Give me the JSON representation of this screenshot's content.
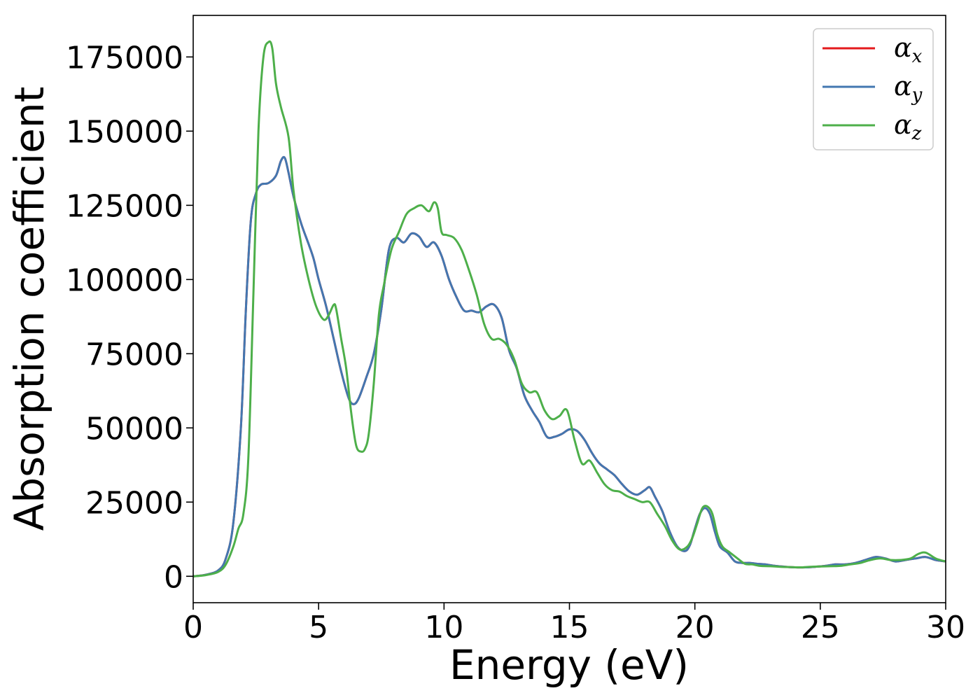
{
  "chart_data": {
    "type": "line",
    "xlabel": "Energy (eV)",
    "ylabel": "Absorption coefficient",
    "xlim": [
      0,
      30
    ],
    "ylim": [
      -8900,
      189000
    ],
    "x_ticks": [
      "0",
      "5",
      "10",
      "15",
      "20",
      "25",
      "30"
    ],
    "y_ticks": [
      "0",
      "25000",
      "50000",
      "75000",
      "100000",
      "125000",
      "150000",
      "175000"
    ],
    "grid": false,
    "legend_placement": "top-right",
    "series": [
      {
        "name": "α",
        "subscript": "x",
        "color": "#e41a1c",
        "x": [
          0,
          0.5,
          1.0,
          1.3,
          1.6,
          1.9,
          2.1,
          2.3,
          2.5,
          2.7,
          3.0,
          3.3,
          3.5,
          3.65,
          3.8,
          4.0,
          4.3,
          4.6,
          4.8,
          5.0,
          5.3,
          5.6,
          5.9,
          6.2,
          6.4,
          6.6,
          6.9,
          7.2,
          7.5,
          7.8,
          8.1,
          8.4,
          8.7,
          9.0,
          9.3,
          9.6,
          9.9,
          10.2,
          10.5,
          10.8,
          11.1,
          11.4,
          11.7,
          12.0,
          12.3,
          12.6,
          12.9,
          13.2,
          13.5,
          13.8,
          14.1,
          14.4,
          14.7,
          15.0,
          15.3,
          15.6,
          15.9,
          16.2,
          16.5,
          16.8,
          17.1,
          17.4,
          17.7,
          18.0,
          18.2,
          18.4,
          18.7,
          19.0,
          19.3,
          19.6,
          19.8,
          20.0,
          20.2,
          20.4,
          20.6,
          20.8,
          21.0,
          21.3,
          21.6,
          21.9,
          22.2,
          22.5,
          22.8,
          23.2,
          23.6,
          24.0,
          24.4,
          24.8,
          25.2,
          25.6,
          26.0,
          26.4,
          26.8,
          27.2,
          27.6,
          28.0,
          28.4,
          28.8,
          29.2,
          29.6,
          30.0
        ],
        "values": [
          0,
          500,
          2000,
          6000,
          18000,
          50000,
          90000,
          120000,
          129000,
          132000,
          132500,
          135000,
          140000,
          141000,
          136000,
          128000,
          119000,
          112000,
          107000,
          100000,
          91000,
          80000,
          69000,
          60000,
          58000,
          60000,
          67000,
          75000,
          90000,
          110000,
          114000,
          112500,
          115500,
          114500,
          111000,
          112500,
          108000,
          100000,
          94000,
          89500,
          89500,
          89000,
          91000,
          91500,
          87000,
          76000,
          70000,
          61000,
          56000,
          52000,
          47000,
          47000,
          48000,
          49500,
          49000,
          46000,
          41500,
          38000,
          36000,
          34000,
          31000,
          28500,
          27500,
          29000,
          30000,
          27000,
          22000,
          15000,
          10000,
          8500,
          10500,
          16000,
          21000,
          23000,
          21000,
          15000,
          10000,
          8000,
          5000,
          4500,
          4500,
          4200,
          4000,
          3500,
          3200,
          3000,
          3000,
          3200,
          3500,
          4000,
          4000,
          4500,
          5500,
          6500,
          6000,
          5000,
          5500,
          6000,
          6500,
          5500,
          5000
        ]
      },
      {
        "name": "α",
        "subscript": "y",
        "color": "#4377b0",
        "x": [
          0,
          0.5,
          1.0,
          1.3,
          1.6,
          1.9,
          2.1,
          2.3,
          2.5,
          2.7,
          3.0,
          3.3,
          3.5,
          3.65,
          3.8,
          4.0,
          4.3,
          4.6,
          4.8,
          5.0,
          5.3,
          5.6,
          5.9,
          6.2,
          6.4,
          6.6,
          6.9,
          7.2,
          7.5,
          7.8,
          8.1,
          8.4,
          8.7,
          9.0,
          9.3,
          9.6,
          9.9,
          10.2,
          10.5,
          10.8,
          11.1,
          11.4,
          11.7,
          12.0,
          12.3,
          12.6,
          12.9,
          13.2,
          13.5,
          13.8,
          14.1,
          14.4,
          14.7,
          15.0,
          15.3,
          15.6,
          15.9,
          16.2,
          16.5,
          16.8,
          17.1,
          17.4,
          17.7,
          18.0,
          18.2,
          18.4,
          18.7,
          19.0,
          19.3,
          19.6,
          19.8,
          20.0,
          20.2,
          20.4,
          20.6,
          20.8,
          21.0,
          21.3,
          21.6,
          21.9,
          22.2,
          22.5,
          22.8,
          23.2,
          23.6,
          24.0,
          24.4,
          24.8,
          25.2,
          25.6,
          26.0,
          26.4,
          26.8,
          27.2,
          27.6,
          28.0,
          28.4,
          28.8,
          29.2,
          29.6,
          30.0
        ],
        "values": [
          0,
          500,
          2000,
          6000,
          18000,
          50000,
          90000,
          120000,
          129000,
          132000,
          132500,
          135000,
          140000,
          141000,
          136000,
          128000,
          119000,
          112000,
          107000,
          100000,
          91000,
          80000,
          69000,
          60000,
          58000,
          60000,
          67000,
          75000,
          90000,
          110000,
          114000,
          112500,
          115500,
          114500,
          111000,
          112500,
          108000,
          100000,
          94000,
          89500,
          89500,
          89000,
          91000,
          91500,
          87000,
          76000,
          70000,
          61000,
          56000,
          52000,
          47000,
          47000,
          48000,
          49500,
          49000,
          46000,
          41500,
          38000,
          36000,
          34000,
          31000,
          28500,
          27500,
          29000,
          30000,
          27000,
          22000,
          15000,
          10000,
          8500,
          10500,
          16000,
          21000,
          23000,
          21000,
          15000,
          10000,
          8000,
          5000,
          4500,
          4500,
          4200,
          4000,
          3500,
          3200,
          3000,
          3000,
          3200,
          3500,
          4000,
          4000,
          4500,
          5500,
          6500,
          6000,
          5000,
          5500,
          6000,
          6500,
          5500,
          5000
        ]
      },
      {
        "name": "α",
        "subscript": "z",
        "color": "#4daf4a",
        "x": [
          0,
          0.5,
          1.0,
          1.3,
          1.6,
          1.8,
          2.0,
          2.2,
          2.4,
          2.6,
          2.8,
          3.0,
          3.15,
          3.3,
          3.5,
          3.8,
          4.0,
          4.3,
          4.6,
          4.9,
          5.2,
          5.4,
          5.6,
          5.7,
          5.9,
          6.1,
          6.3,
          6.5,
          6.7,
          6.85,
          7.0,
          7.2,
          7.4,
          7.6,
          7.9,
          8.2,
          8.5,
          8.8,
          9.1,
          9.4,
          9.6,
          9.75,
          9.9,
          10.1,
          10.4,
          10.7,
          11.0,
          11.3,
          11.6,
          11.9,
          12.2,
          12.5,
          12.8,
          13.1,
          13.4,
          13.7,
          14.0,
          14.3,
          14.6,
          14.9,
          15.2,
          15.5,
          15.8,
          16.1,
          16.4,
          16.7,
          17.0,
          17.3,
          17.6,
          17.9,
          18.2,
          18.5,
          18.8,
          19.1,
          19.4,
          19.7,
          19.9,
          20.1,
          20.3,
          20.5,
          20.7,
          20.9,
          21.1,
          21.4,
          21.7,
          22.0,
          22.3,
          22.6,
          23.0,
          23.4,
          23.8,
          24.2,
          24.6,
          25.0,
          25.4,
          25.8,
          26.2,
          26.6,
          27.0,
          27.4,
          27.8,
          28.2,
          28.6,
          28.9,
          29.2,
          29.6,
          30.0
        ],
        "values": [
          0,
          400,
          1500,
          4000,
          10000,
          16000,
          21000,
          40000,
          95000,
          150000,
          175000,
          180000,
          178000,
          166000,
          158000,
          148000,
          130000,
          112000,
          100000,
          91000,
          86500,
          88000,
          91500,
          90000,
          80000,
          70000,
          55000,
          44000,
          42000,
          43000,
          48000,
          65000,
          88000,
          98000,
          110000,
          116000,
          122000,
          124000,
          125000,
          123000,
          126000,
          124000,
          116000,
          115000,
          114000,
          110000,
          103000,
          95000,
          85000,
          80000,
          80000,
          78000,
          73000,
          65000,
          62000,
          62000,
          56000,
          53000,
          54000,
          56000,
          46000,
          38000,
          39000,
          35000,
          31000,
          29000,
          28500,
          27000,
          26000,
          25000,
          25000,
          21000,
          17000,
          12000,
          9000,
          10000,
          13000,
          18000,
          23000,
          23500,
          21000,
          14000,
          10000,
          8000,
          6000,
          4200,
          4000,
          3500,
          3400,
          3200,
          3100,
          3000,
          3200,
          3300,
          3400,
          3500,
          4000,
          4500,
          5500,
          6000,
          5500,
          5500,
          6000,
          7500,
          8000,
          6000,
          5000
        ]
      }
    ]
  }
}
